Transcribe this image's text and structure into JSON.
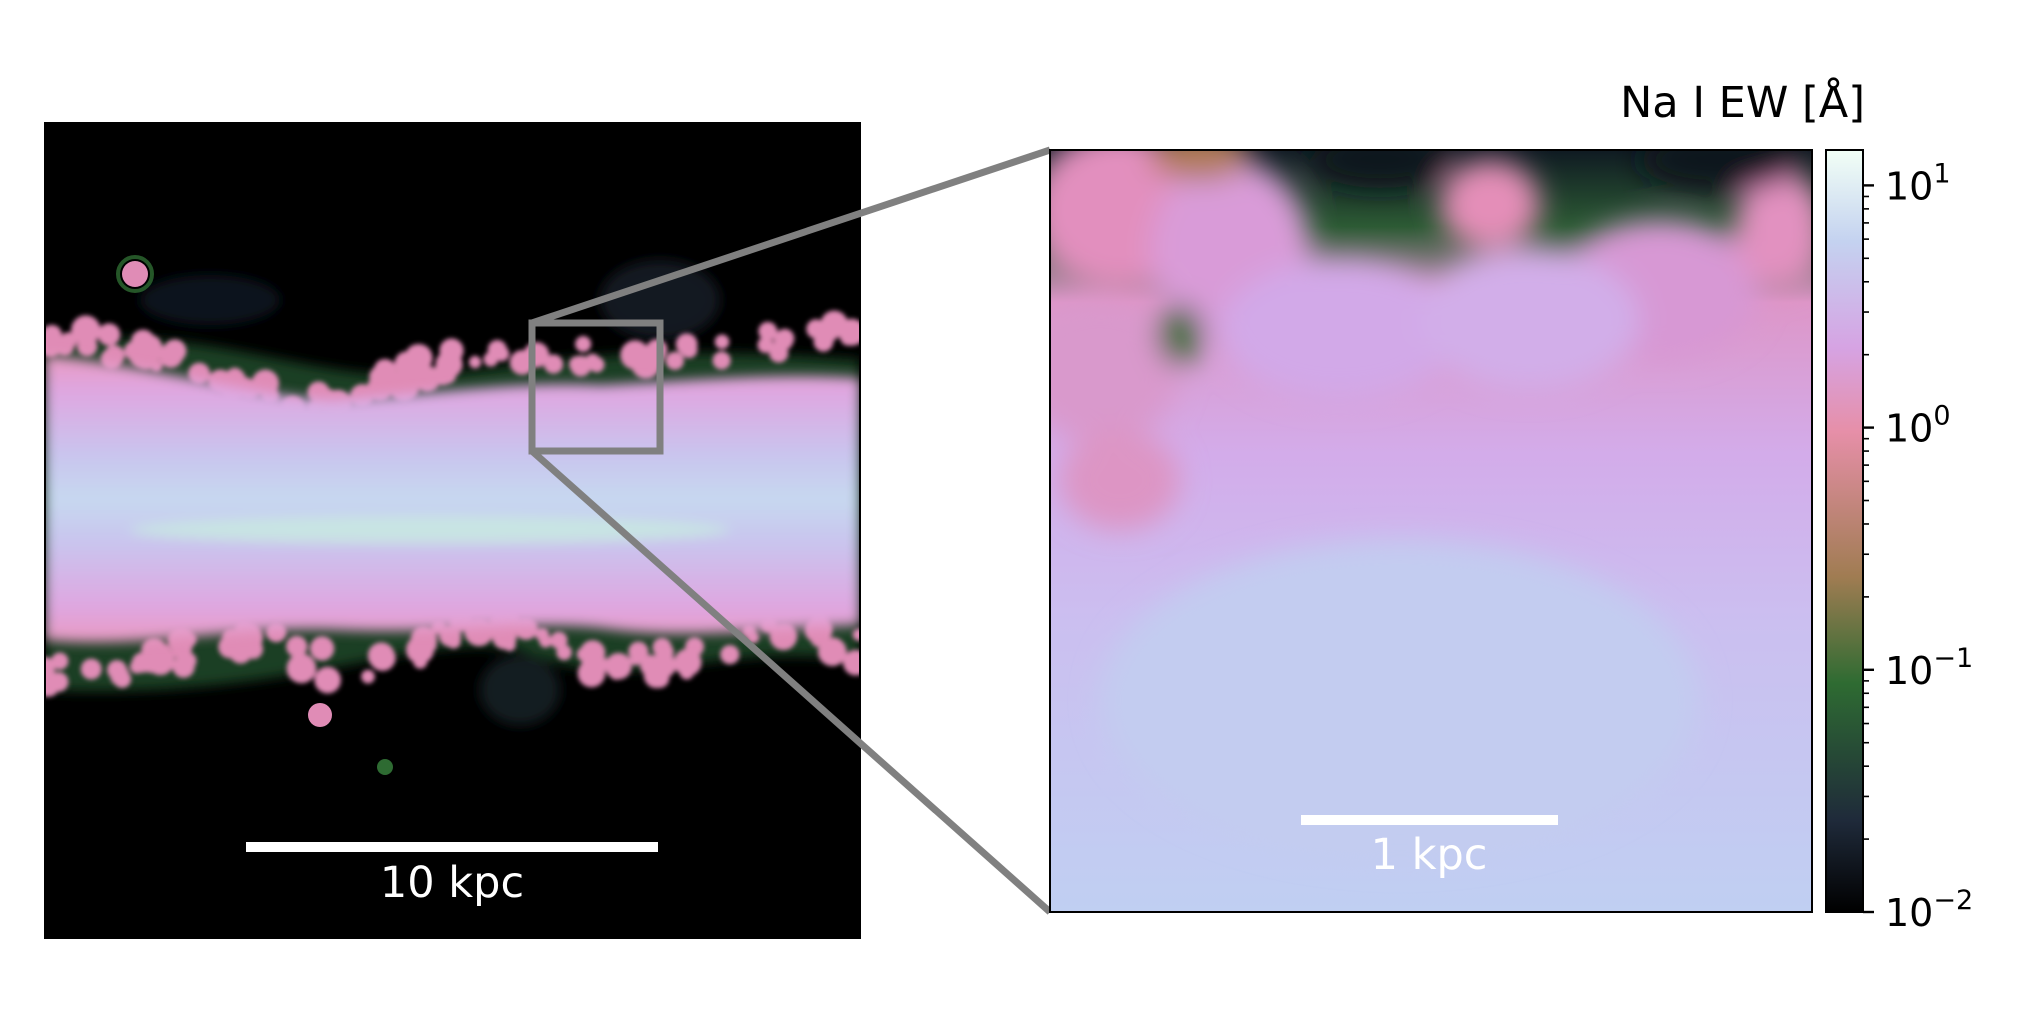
{
  "chart_data": [
    {
      "type": "heatmap",
      "panel": "left",
      "description_shown": "edge-on galaxy map",
      "scale_bar_label": "10 kpc",
      "value_scale": "log",
      "zoom_box": true
    },
    {
      "type": "heatmap",
      "panel": "right",
      "scale_bar_label": "1 kpc",
      "value_scale": "log"
    }
  ],
  "colorbar": {
    "label": "Na I EW [Å]",
    "scale": "log",
    "vmin": 0.01,
    "vmax": 14,
    "major_ticks": [
      {
        "value": 10,
        "base": "10",
        "exp": "1"
      },
      {
        "value": 1,
        "base": "10",
        "exp": "0"
      },
      {
        "value": 0.1,
        "base": "10",
        "exp": "−1"
      },
      {
        "value": 0.01,
        "base": "10",
        "exp": "−2"
      }
    ],
    "colormap": [
      "#000000",
      "#1f2a3a",
      "#2e6b32",
      "#a07c52",
      "#e68fa8",
      "#d6a3e3",
      "#c4d2f0",
      "#f2fff6"
    ]
  },
  "colors": {
    "zoom_frame": "#808080",
    "scale_bar": "#ffffff"
  }
}
